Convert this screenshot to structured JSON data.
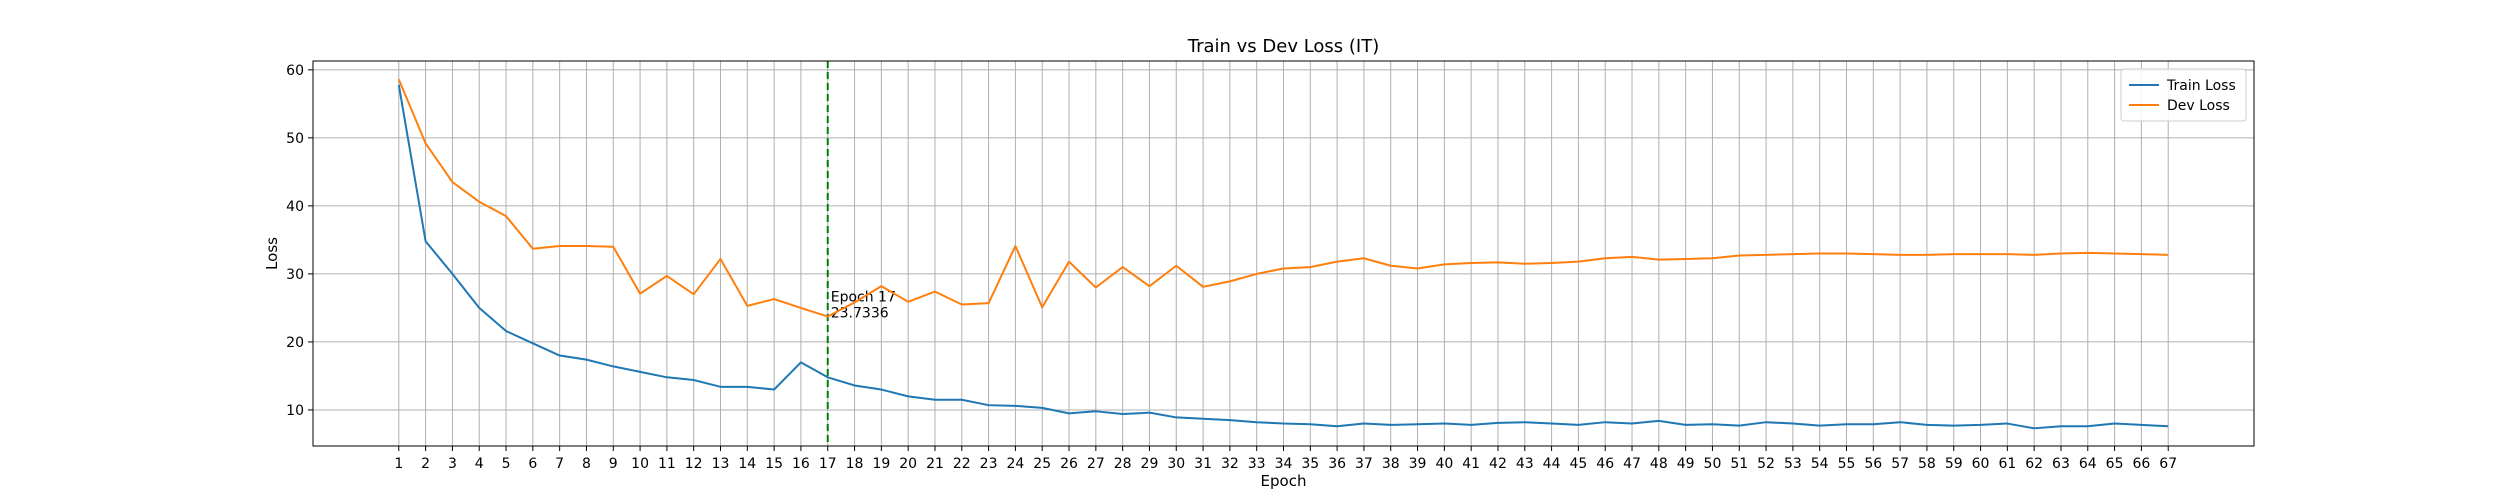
{
  "chart_data": {
    "type": "line",
    "title": "Train vs Dev Loss (IT)",
    "xlabel": "Epoch",
    "ylabel": "Loss",
    "xlim": [
      -2.2,
      70.2
    ],
    "ylim": [
      4.7,
      61.3
    ],
    "yticks": [
      10,
      20,
      30,
      40,
      50,
      60
    ],
    "x": [
      1,
      2,
      3,
      4,
      5,
      6,
      7,
      8,
      9,
      10,
      11,
      12,
      13,
      14,
      15,
      16,
      17,
      18,
      19,
      20,
      21,
      22,
      23,
      24,
      25,
      26,
      27,
      28,
      29,
      30,
      31,
      32,
      33,
      34,
      35,
      36,
      37,
      38,
      39,
      40,
      41,
      42,
      43,
      44,
      45,
      46,
      47,
      48,
      49,
      50,
      51,
      52,
      53,
      54,
      55,
      56,
      57,
      58,
      59,
      60,
      61,
      62,
      63,
      64,
      65,
      66,
      67
    ],
    "grid": true,
    "legend_position": "top-right",
    "series": [
      {
        "name": "Train Loss",
        "color": "#1f77b4",
        "values": [
          57.8,
          34.8,
          30.0,
          25.0,
          21.6,
          19.8,
          18.0,
          17.4,
          16.4,
          15.6,
          14.8,
          14.4,
          13.4,
          13.4,
          13.0,
          17.0,
          14.8,
          13.6,
          13.0,
          12.0,
          11.5,
          11.5,
          10.7,
          10.6,
          10.3,
          9.5,
          9.8,
          9.4,
          9.6,
          8.9,
          8.7,
          8.5,
          8.2,
          8.0,
          7.9,
          7.6,
          8.0,
          7.8,
          7.9,
          8.0,
          7.8,
          8.1,
          8.2,
          8.0,
          7.8,
          8.2,
          8.0,
          8.4,
          7.8,
          7.9,
          7.7,
          8.2,
          8.0,
          7.7,
          7.9,
          7.9,
          8.2,
          7.8,
          7.7,
          7.8,
          8.0,
          7.3,
          7.6,
          7.6,
          8.0,
          7.8,
          7.6
        ]
      },
      {
        "name": "Dev Loss",
        "color": "#ff7f0e",
        "values": [
          58.6,
          49.2,
          43.5,
          40.6,
          38.5,
          33.7,
          34.1,
          34.1,
          34.0,
          27.1,
          29.7,
          27.0,
          32.2,
          25.3,
          26.3,
          25.0,
          23.7336,
          25.8,
          28.2,
          25.9,
          27.4,
          25.5,
          25.7,
          34.1,
          25.1,
          31.8,
          28.0,
          31.0,
          28.2,
          31.2,
          28.1,
          28.9,
          30.0,
          30.8,
          31.0,
          31.8,
          32.3,
          31.2,
          30.8,
          31.4,
          31.6,
          31.7,
          31.5,
          31.6,
          31.8,
          32.3,
          32.5,
          32.1,
          32.2,
          32.3,
          32.7,
          32.8,
          32.9,
          33.0,
          33.0,
          32.9,
          32.8,
          32.8,
          32.9,
          32.9,
          32.9,
          32.8,
          33.0,
          33.1,
          33.0,
          32.9,
          32.8
        ]
      }
    ],
    "annotation": {
      "x": 17,
      "y": 23.7336,
      "line_color": "#008000",
      "line_style": "dashed",
      "text_line1": "Epoch 17",
      "text_line2": "23.7336"
    }
  }
}
